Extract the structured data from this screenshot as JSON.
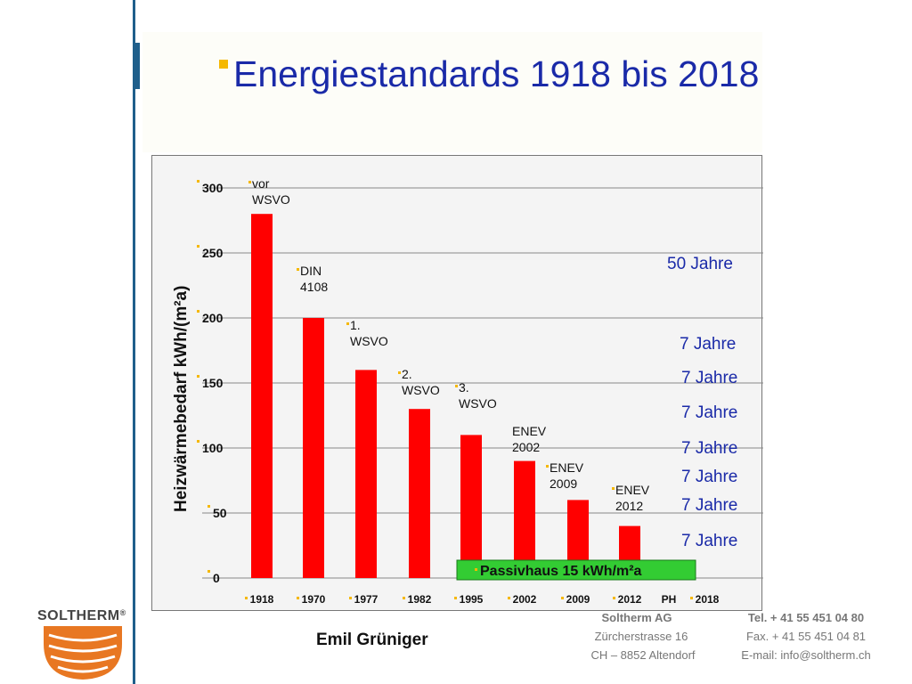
{
  "title": "Energiestandards 1918 bis 2018",
  "accent_colors": {
    "title": "#1a2aa8",
    "bar": "#ff0000",
    "bullet": "#f5b800",
    "passivhaus": "#33cc33",
    "jahre_text": "#1a2aa8"
  },
  "chart_data": {
    "type": "bar",
    "ylabel": "Heizwärmebedarf  kWh/(m²a)",
    "ylim": [
      0,
      300
    ],
    "yticks": [
      "300",
      "250",
      "200",
      "150",
      "100",
      "50",
      "0"
    ],
    "categories": [
      "1918",
      "1970",
      "1977",
      "1982",
      "1995",
      "2002",
      "2009",
      "2012",
      "PH",
      "2018"
    ],
    "values": [
      280,
      200,
      160,
      130,
      110,
      90,
      60,
      40,
      null,
      null
    ],
    "bar_labels": [
      [
        "vor",
        "WSVO"
      ],
      [
        "DIN",
        "4108"
      ],
      [
        "1.",
        "WSVO"
      ],
      [
        "2.",
        "WSVO"
      ],
      [
        "3.",
        "WSVO"
      ],
      [
        "ENEV",
        "2002"
      ],
      [
        "ENEV",
        "2009"
      ],
      [
        "ENEV",
        "2012"
      ]
    ],
    "duration_labels": [
      "50 Jahre",
      "7 Jahre",
      "7 Jahre",
      "7 Jahre",
      "7 Jahre",
      "7 Jahre",
      "7 Jahre",
      "7 Jahre"
    ],
    "passivhaus_label": "Passivhaus 15 kWh/m²a",
    "grid": true
  },
  "author": "Emil Grüniger",
  "logo": {
    "text": "SOLTHERM",
    "reg": "®"
  },
  "footer": {
    "company": "Soltherm AG",
    "street": "Zürcherstrasse 16",
    "city": "CH – 8852 Altendorf",
    "tel": "Tel.  + 41 55 451 04 80",
    "fax": "Fax. + 41 55 451 04 81",
    "email": "E-mail: info@soltherm.ch"
  }
}
